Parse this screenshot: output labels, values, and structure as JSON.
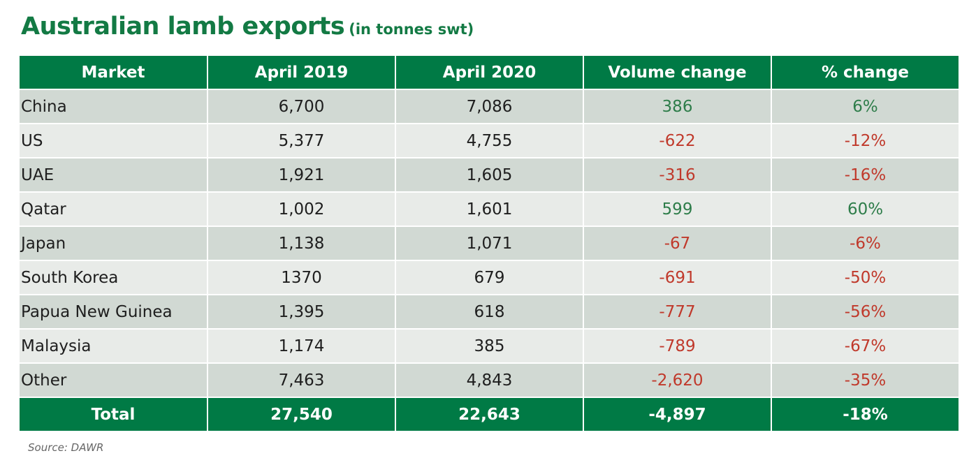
{
  "colors": {
    "header_green": "#007a45",
    "title_green": "#137a44",
    "row_odd": "#d1d9d3",
    "row_even": "#e8ebe8",
    "positive": "#2e7d4a",
    "negative": "#c0392b"
  },
  "chart_data": {
    "type": "table",
    "title": "Australian lamb exports",
    "subtitle": "(in tonnes swt)",
    "columns": [
      "Market",
      "April 2019",
      "April 2020",
      "Volume change",
      "% change"
    ],
    "rows": [
      {
        "market": "China",
        "april_2019": "6,700",
        "april_2020": "7,086",
        "volume_change": "386",
        "pct_change": "6%",
        "direction": "pos"
      },
      {
        "market": "US",
        "april_2019": "5,377",
        "april_2020": "4,755",
        "volume_change": "-622",
        "pct_change": "-12%",
        "direction": "neg"
      },
      {
        "market": "UAE",
        "april_2019": "1,921",
        "april_2020": "1,605",
        "volume_change": "-316",
        "pct_change": "-16%",
        "direction": "neg"
      },
      {
        "market": "Qatar",
        "april_2019": "1,002",
        "april_2020": "1,601",
        "volume_change": "599",
        "pct_change": "60%",
        "direction": "pos"
      },
      {
        "market": "Japan",
        "april_2019": "1,138",
        "april_2020": "1,071",
        "volume_change": "-67",
        "pct_change": "-6%",
        "direction": "neg"
      },
      {
        "market": "South Korea",
        "april_2019": "1370",
        "april_2020": "679",
        "volume_change": "-691",
        "pct_change": "-50%",
        "direction": "neg"
      },
      {
        "market": "Papua New Guinea",
        "april_2019": "1,395",
        "april_2020": "618",
        "volume_change": "-777",
        "pct_change": "-56%",
        "direction": "neg"
      },
      {
        "market": "Malaysia",
        "april_2019": "1,174",
        "april_2020": "385",
        "volume_change": "-789",
        "pct_change": "-67%",
        "direction": "neg"
      },
      {
        "market": "Other",
        "april_2019": "7,463",
        "april_2020": "4,843",
        "volume_change": "-2,620",
        "pct_change": "-35%",
        "direction": "neg"
      }
    ],
    "total": {
      "market": "Total",
      "april_2019": "27,540",
      "april_2020": "22,643",
      "volume_change": "-4,897",
      "pct_change": "-18%"
    },
    "source": "Source: DAWR"
  }
}
